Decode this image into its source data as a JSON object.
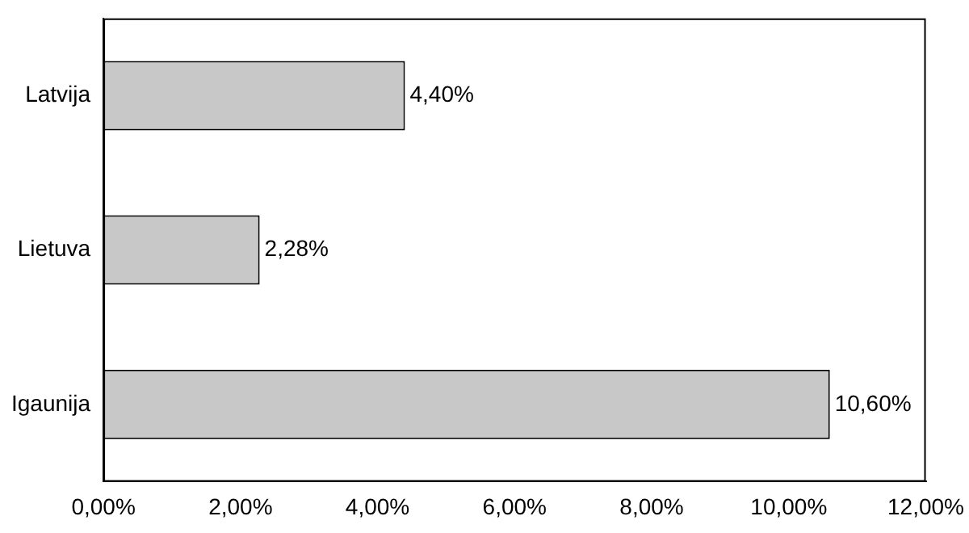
{
  "chart_data": {
    "type": "bar",
    "orientation": "horizontal",
    "categories": [
      "Latvija",
      "Lietuva",
      "Igaunija"
    ],
    "values": [
      4.4,
      2.28,
      10.6
    ],
    "value_labels": [
      "4,40%",
      "2,28%",
      "10,60%"
    ],
    "color": "#c8c8c8",
    "xlim": [
      0,
      12
    ],
    "xticks": [
      {
        "value": 0,
        "label": "0,00%"
      },
      {
        "value": 2,
        "label": "2,00%"
      },
      {
        "value": 4,
        "label": "4,00%"
      },
      {
        "value": 6,
        "label": "6,00%"
      },
      {
        "value": 8,
        "label": "8,00%"
      },
      {
        "value": 10,
        "label": "10,00%"
      },
      {
        "value": 12,
        "label": "12,00%"
      }
    ],
    "grid": false,
    "legend": false
  }
}
